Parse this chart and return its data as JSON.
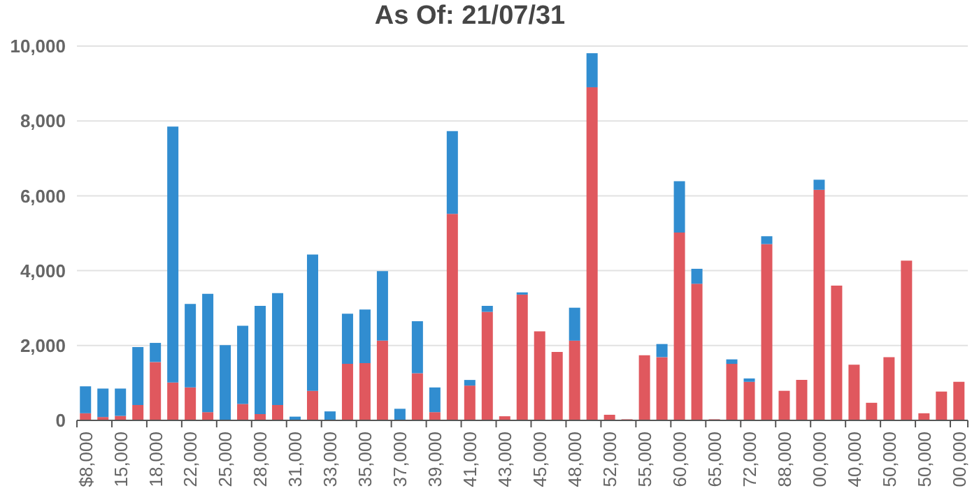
{
  "chart_data": {
    "type": "bar",
    "title": "As Of: 21/07/31",
    "categories": [
      "$8,000",
      null,
      "15,000",
      null,
      "18,000",
      null,
      "22,000",
      null,
      "25,000",
      null,
      "28,000",
      null,
      "31,000",
      null,
      "33,000",
      null,
      "35,000",
      null,
      "37,000",
      null,
      "39,000",
      null,
      "41,000",
      null,
      "43,000",
      null,
      "45,000",
      null,
      "48,000",
      null,
      "52,000",
      null,
      "55,000",
      null,
      "60,000",
      null,
      "65,000",
      null,
      "72,000",
      null,
      "88,000",
      null,
      "00,000",
      null,
      "40,000",
      null,
      "50,000",
      null,
      "50,000",
      null,
      "00,000"
    ],
    "series": [
      {
        "color": "#e0585e",
        "values": [
          190,
          90,
          120,
          410,
          1560,
          1010,
          880,
          220,
          0,
          440,
          170,
          410,
          0,
          790,
          0,
          1510,
          1530,
          2130,
          0,
          1260,
          220,
          5520,
          930,
          2900,
          110,
          3360,
          2380,
          1830,
          2130,
          8900,
          150,
          30,
          1740,
          1690,
          5020,
          3650,
          30,
          1510,
          1030,
          4710,
          790,
          1080,
          6160,
          3600,
          1490,
          470,
          1690,
          4270,
          190,
          770,
          1030
        ]
      },
      {
        "color": "#318dd0",
        "values": [
          720,
          760,
          730,
          1550,
          510,
          6840,
          2230,
          3160,
          2010,
          2090,
          2890,
          2990,
          100,
          3640,
          240,
          1340,
          1430,
          1860,
          310,
          1390,
          660,
          2210,
          150,
          160,
          0,
          60,
          0,
          0,
          880,
          910,
          0,
          0,
          0,
          350,
          1370,
          400,
          0,
          120,
          90,
          210,
          0,
          0,
          270,
          0,
          0,
          0,
          0,
          0,
          0,
          0,
          0
        ]
      }
    ],
    "stacked": true,
    "ylim": [
      0,
      10000
    ],
    "yticks": [
      0,
      {
        "value": 2000,
        "label": "2,000"
      },
      {
        "value": 4000,
        "label": "4,000"
      },
      {
        "value": 6000,
        "label": "6,000"
      },
      {
        "value": 8000,
        "label": "8,000"
      },
      {
        "value": 10000,
        "label": "10,000"
      }
    ],
    "grid": "y"
  }
}
